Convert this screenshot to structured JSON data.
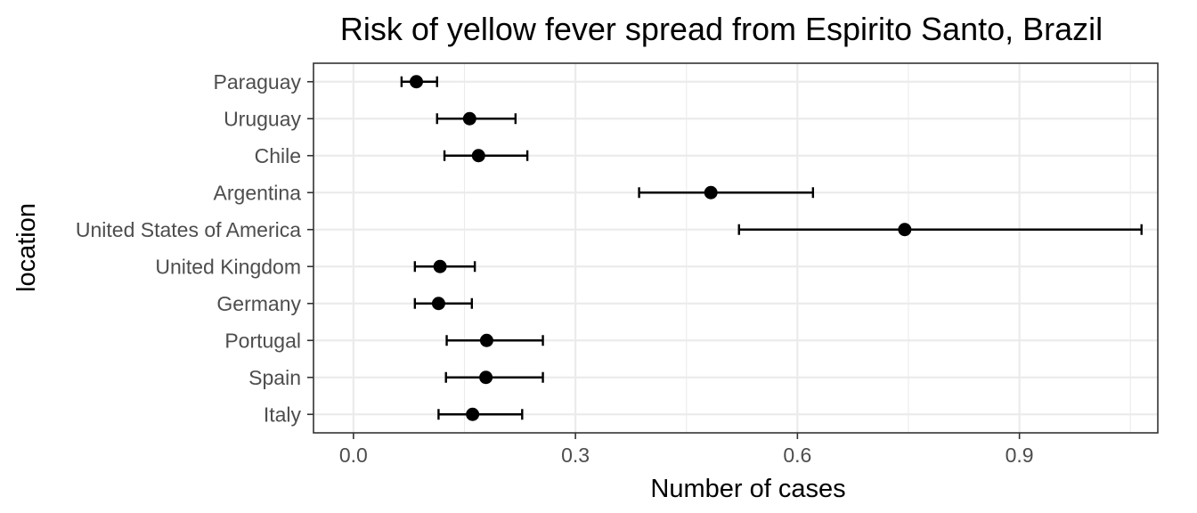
{
  "chart_data": {
    "type": "scatter",
    "title": "Risk of yellow fever spread from Espirito Santo, Brazil",
    "xlabel": "Number of cases",
    "ylabel": "location",
    "xlim": [
      -0.054,
      1.087
    ],
    "xticks": [
      0.0,
      0.3,
      0.6,
      0.9
    ],
    "xtick_labels": [
      "0.0",
      "0.3",
      "0.6",
      "0.9"
    ],
    "grid": true,
    "categories": [
      "Paraguay",
      "Uruguay",
      "Chile",
      "Argentina",
      "United States of America",
      "United Kingdom",
      "Germany",
      "Portugal",
      "Spain",
      "Italy"
    ],
    "series": [
      {
        "values": [
          0.085,
          0.157,
          0.169,
          0.483,
          0.745,
          0.117,
          0.115,
          0.18,
          0.179,
          0.161
        ],
        "lower": [
          0.065,
          0.113,
          0.123,
          0.386,
          0.521,
          0.083,
          0.083,
          0.126,
          0.125,
          0.115
        ],
        "upper": [
          0.113,
          0.219,
          0.235,
          0.621,
          1.065,
          0.164,
          0.16,
          0.256,
          0.256,
          0.228
        ]
      }
    ]
  }
}
